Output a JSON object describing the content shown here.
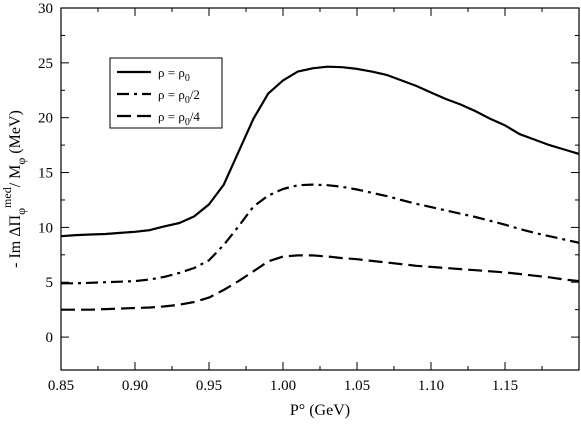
{
  "chart_data": {
    "type": "line",
    "xlabel": "P° (GeV)",
    "ylabel": "- Im  ΔΠφmed/ Mφ (MeV)",
    "ylabel_parts": {
      "prefix": "- Im  ΔΠ",
      "sub1": "φ",
      "sup1": "med",
      "mid": "/ M",
      "sub2": "φ",
      "suffix": " (MeV)"
    },
    "xlim": [
      0.85,
      1.2
    ],
    "ylim": [
      -3,
      30
    ],
    "xticks": [
      "0.85",
      "0.90",
      "0.95",
      "1.00",
      "1.05",
      "1.10",
      "1.15"
    ],
    "xtick_values": [
      0.85,
      0.9,
      0.95,
      1.0,
      1.05,
      1.1,
      1.15
    ],
    "yticks": [
      "0",
      "5",
      "10",
      "15",
      "20",
      "25",
      "30"
    ],
    "ytick_values": [
      0,
      5,
      10,
      15,
      20,
      25,
      30
    ],
    "legend_position": "top-left",
    "series": [
      {
        "name": "ρ = ρ0",
        "legend": {
          "base": "ρ = ρ",
          "sub": "0",
          "suffix": ""
        },
        "style": "solid",
        "x": [
          0.85,
          0.86,
          0.87,
          0.88,
          0.89,
          0.9,
          0.91,
          0.92,
          0.93,
          0.94,
          0.95,
          0.96,
          0.97,
          0.98,
          0.99,
          1.0,
          1.01,
          1.02,
          1.03,
          1.04,
          1.05,
          1.06,
          1.07,
          1.08,
          1.09,
          1.1,
          1.11,
          1.12,
          1.13,
          1.14,
          1.15,
          1.16,
          1.17,
          1.18,
          1.19,
          1.2
        ],
        "y": [
          9.2,
          9.3,
          9.35,
          9.4,
          9.5,
          9.6,
          9.75,
          10.1,
          10.4,
          11.0,
          12.1,
          13.9,
          16.9,
          19.9,
          22.2,
          23.4,
          24.2,
          24.5,
          24.65,
          24.6,
          24.45,
          24.2,
          23.9,
          23.4,
          22.9,
          22.3,
          21.7,
          21.2,
          20.6,
          19.9,
          19.3,
          18.5,
          18.0,
          17.5,
          17.1,
          16.7
        ]
      },
      {
        "name": "ρ = ρ0/2",
        "legend": {
          "base": "ρ = ρ",
          "sub": "0",
          "suffix": "/2"
        },
        "style": "dash-dot",
        "x": [
          0.85,
          0.86,
          0.87,
          0.88,
          0.89,
          0.9,
          0.91,
          0.92,
          0.93,
          0.94,
          0.95,
          0.96,
          0.97,
          0.98,
          0.99,
          1.0,
          1.01,
          1.02,
          1.03,
          1.04,
          1.05,
          1.06,
          1.07,
          1.08,
          1.09,
          1.1,
          1.11,
          1.12,
          1.13,
          1.14,
          1.15,
          1.16,
          1.17,
          1.18,
          1.19,
          1.2
        ],
        "y": [
          4.9,
          4.9,
          4.95,
          5.0,
          5.05,
          5.1,
          5.25,
          5.5,
          5.85,
          6.3,
          7.0,
          8.4,
          10.1,
          11.9,
          12.9,
          13.5,
          13.85,
          13.9,
          13.85,
          13.7,
          13.45,
          13.15,
          12.85,
          12.5,
          12.15,
          11.85,
          11.55,
          11.25,
          10.95,
          10.6,
          10.25,
          9.85,
          9.5,
          9.2,
          8.9,
          8.6
        ]
      },
      {
        "name": "ρ = ρ0/4",
        "legend": {
          "base": "ρ = ρ",
          "sub": "0",
          "suffix": "/4"
        },
        "style": "dashed",
        "x": [
          0.85,
          0.86,
          0.87,
          0.88,
          0.89,
          0.9,
          0.91,
          0.92,
          0.93,
          0.94,
          0.95,
          0.96,
          0.97,
          0.98,
          0.99,
          1.0,
          1.01,
          1.02,
          1.03,
          1.04,
          1.05,
          1.06,
          1.07,
          1.08,
          1.09,
          1.1,
          1.11,
          1.12,
          1.13,
          1.14,
          1.15,
          1.16,
          1.17,
          1.18,
          1.19,
          1.2
        ],
        "y": [
          2.5,
          2.5,
          2.5,
          2.55,
          2.6,
          2.65,
          2.7,
          2.8,
          2.95,
          3.2,
          3.6,
          4.3,
          5.1,
          6.0,
          6.9,
          7.35,
          7.45,
          7.45,
          7.35,
          7.2,
          7.1,
          6.95,
          6.8,
          6.65,
          6.5,
          6.4,
          6.3,
          6.2,
          6.1,
          6.0,
          5.9,
          5.75,
          5.6,
          5.45,
          5.25,
          5.1
        ]
      }
    ]
  }
}
